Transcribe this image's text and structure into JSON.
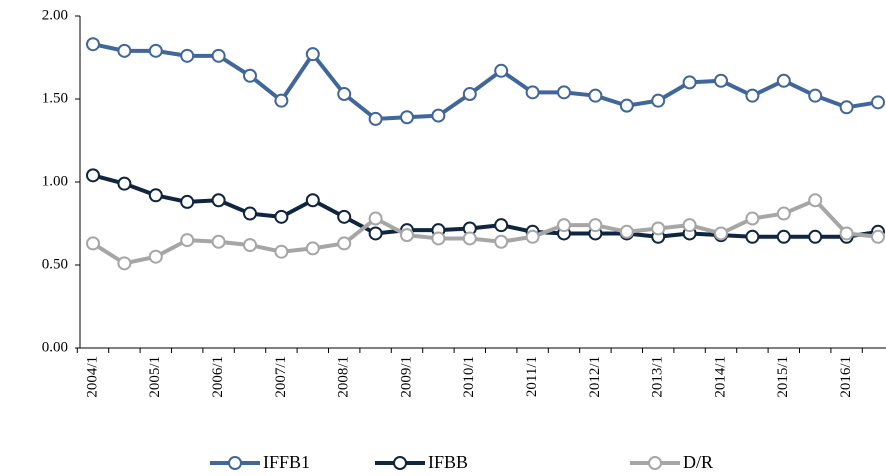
{
  "chart_data": {
    "type": "line",
    "categories": [
      "2004/1",
      null,
      "2005/1",
      null,
      "2006/1",
      null,
      "2007/1",
      null,
      "2008/1",
      null,
      "2009/1",
      null,
      "2010/1",
      null,
      "2011/1",
      null,
      "2012/1",
      null,
      "2013/1",
      null,
      "2014/1",
      null,
      "2015/1",
      null,
      "2016/1",
      null
    ],
    "series": [
      {
        "name": "IFFB1",
        "color": "#41679a",
        "values": [
          1.83,
          1.79,
          1.79,
          1.76,
          1.76,
          1.64,
          1.49,
          1.77,
          1.53,
          1.38,
          1.39,
          1.4,
          1.53,
          1.67,
          1.54,
          1.54,
          1.52,
          1.46,
          1.49,
          1.6,
          1.61,
          1.52,
          1.61,
          1.52,
          1.45,
          1.48
        ]
      },
      {
        "name": "IFBB",
        "color": "#0f2540",
        "values": [
          1.04,
          0.99,
          0.92,
          0.88,
          0.89,
          0.81,
          0.79,
          0.89,
          0.79,
          0.69,
          0.71,
          0.71,
          0.72,
          0.74,
          0.7,
          0.69,
          0.69,
          0.69,
          0.67,
          0.69,
          0.68,
          0.67,
          0.67,
          0.67,
          0.67,
          0.7
        ]
      },
      {
        "name": "D/R",
        "color": "#a6a6a6",
        "values": [
          0.63,
          0.51,
          0.55,
          0.65,
          0.64,
          0.62,
          0.58,
          0.6,
          0.63,
          0.78,
          0.68,
          0.66,
          0.66,
          0.64,
          0.67,
          0.74,
          0.74,
          0.7,
          0.72,
          0.74,
          0.69,
          0.78,
          0.81,
          0.89,
          0.69,
          0.67
        ]
      }
    ],
    "ylim": [
      0,
      2
    ],
    "yticks": [
      {
        "value": 0,
        "label": "0.00"
      },
      {
        "value": 0.5,
        "label": "0.50"
      },
      {
        "value": 1,
        "label": "1.00"
      },
      {
        "value": 1.5,
        "label": "1.50"
      },
      {
        "value": 2,
        "label": "2.00"
      }
    ],
    "grid": false,
    "legend": "bottom"
  }
}
